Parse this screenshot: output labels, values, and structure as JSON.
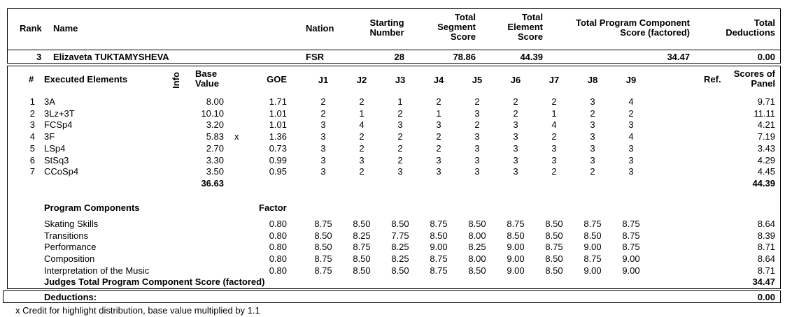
{
  "summary_header": {
    "rank": "Rank",
    "name": "Name",
    "nation": "Nation",
    "starting_number": [
      "Starting",
      "Number"
    ],
    "total_segment_score": [
      "Total",
      "Segment",
      "Score"
    ],
    "total_element_score": [
      "Total",
      "Element",
      "Score"
    ],
    "total_program_component": [
      "Total Program Component",
      "Score (factored)"
    ],
    "total_deductions": [
      "Total",
      "Deductions"
    ]
  },
  "skater": {
    "rank": "3",
    "name": "Elizaveta TUKTAMYSHEVA",
    "nation": "FSR",
    "starting_number": "28",
    "total_segment_score": "78.86",
    "total_element_score": "44.39",
    "total_program_component": "34.47",
    "total_deductions": "0.00"
  },
  "elements_header": {
    "num": "#",
    "executed_elements": "Executed Elements",
    "info": "Info",
    "base_value": [
      "Base",
      "Value"
    ],
    "goe": "GOE",
    "judges": [
      "J1",
      "J2",
      "J3",
      "J4",
      "J5",
      "J6",
      "J7",
      "J8",
      "J9"
    ],
    "ref": "Ref.",
    "scores_of_panel": [
      "Scores of",
      "Panel"
    ]
  },
  "elements": [
    {
      "num": "1",
      "name": "3A",
      "info": "",
      "base": "8.00",
      "goe": "1.71",
      "judges": [
        "2",
        "2",
        "1",
        "2",
        "2",
        "2",
        "2",
        "3",
        "4"
      ],
      "panel": "9.71"
    },
    {
      "num": "2",
      "name": "3Lz+3T",
      "info": "",
      "base": "10.10",
      "goe": "1.01",
      "judges": [
        "2",
        "1",
        "2",
        "1",
        "3",
        "2",
        "1",
        "2",
        "2"
      ],
      "panel": "11.11"
    },
    {
      "num": "3",
      "name": "FCSp4",
      "info": "",
      "base": "3.20",
      "goe": "1.01",
      "judges": [
        "3",
        "4",
        "3",
        "3",
        "2",
        "3",
        "4",
        "3",
        "3"
      ],
      "panel": "4.21"
    },
    {
      "num": "4",
      "name": "3F",
      "info": "x",
      "base": "5.83",
      "goe": "1.36",
      "judges": [
        "3",
        "2",
        "2",
        "2",
        "3",
        "3",
        "2",
        "3",
        "4"
      ],
      "panel": "7.19"
    },
    {
      "num": "5",
      "name": "LSp4",
      "info": "",
      "base": "2.70",
      "goe": "0.73",
      "judges": [
        "3",
        "2",
        "2",
        "2",
        "3",
        "3",
        "3",
        "3",
        "3"
      ],
      "panel": "3.43"
    },
    {
      "num": "6",
      "name": "StSq3",
      "info": "",
      "base": "3.30",
      "goe": "0.99",
      "judges": [
        "3",
        "3",
        "2",
        "3",
        "3",
        "3",
        "3",
        "3",
        "3"
      ],
      "panel": "4.29"
    },
    {
      "num": "7",
      "name": "CCoSp4",
      "info": "",
      "base": "3.50",
      "goe": "0.95",
      "judges": [
        "3",
        "2",
        "3",
        "3",
        "3",
        "3",
        "2",
        "2",
        "3"
      ],
      "panel": "4.45"
    }
  ],
  "elements_totals": {
    "base": "36.63",
    "panel": "44.39"
  },
  "components_header": {
    "title": "Program Components",
    "factor": "Factor"
  },
  "components": [
    {
      "name": "Skating Skills",
      "factor": "0.80",
      "judges": [
        "8.75",
        "8.50",
        "8.50",
        "8.75",
        "8.50",
        "8.75",
        "8.50",
        "8.75",
        "8.75"
      ],
      "panel": "8.64"
    },
    {
      "name": "Transitions",
      "factor": "0.80",
      "judges": [
        "8.50",
        "8.25",
        "7.75",
        "8.50",
        "8.00",
        "8.50",
        "8.50",
        "8.50",
        "8.75"
      ],
      "panel": "8.39"
    },
    {
      "name": "Performance",
      "factor": "0.80",
      "judges": [
        "8.50",
        "8.75",
        "8.25",
        "9.00",
        "8.25",
        "9.00",
        "8.75",
        "9.00",
        "8.75"
      ],
      "panel": "8.71"
    },
    {
      "name": "Composition",
      "factor": "0.80",
      "judges": [
        "8.75",
        "8.50",
        "8.25",
        "8.75",
        "8.00",
        "9.00",
        "8.50",
        "8.75",
        "9.00"
      ],
      "panel": "8.64"
    },
    {
      "name": "Interpretation of the Music",
      "factor": "0.80",
      "judges": [
        "8.75",
        "8.50",
        "8.50",
        "8.75",
        "8.50",
        "9.00",
        "8.50",
        "9.00",
        "9.00"
      ],
      "panel": "8.71"
    }
  ],
  "judges_total": {
    "label": "Judges Total Program Component Score (factored)",
    "value": "34.47"
  },
  "deductions": {
    "label": "Deductions:",
    "value": "0.00"
  },
  "footnote": "x Credit for highlight distribution, base value multiplied by 1.1"
}
